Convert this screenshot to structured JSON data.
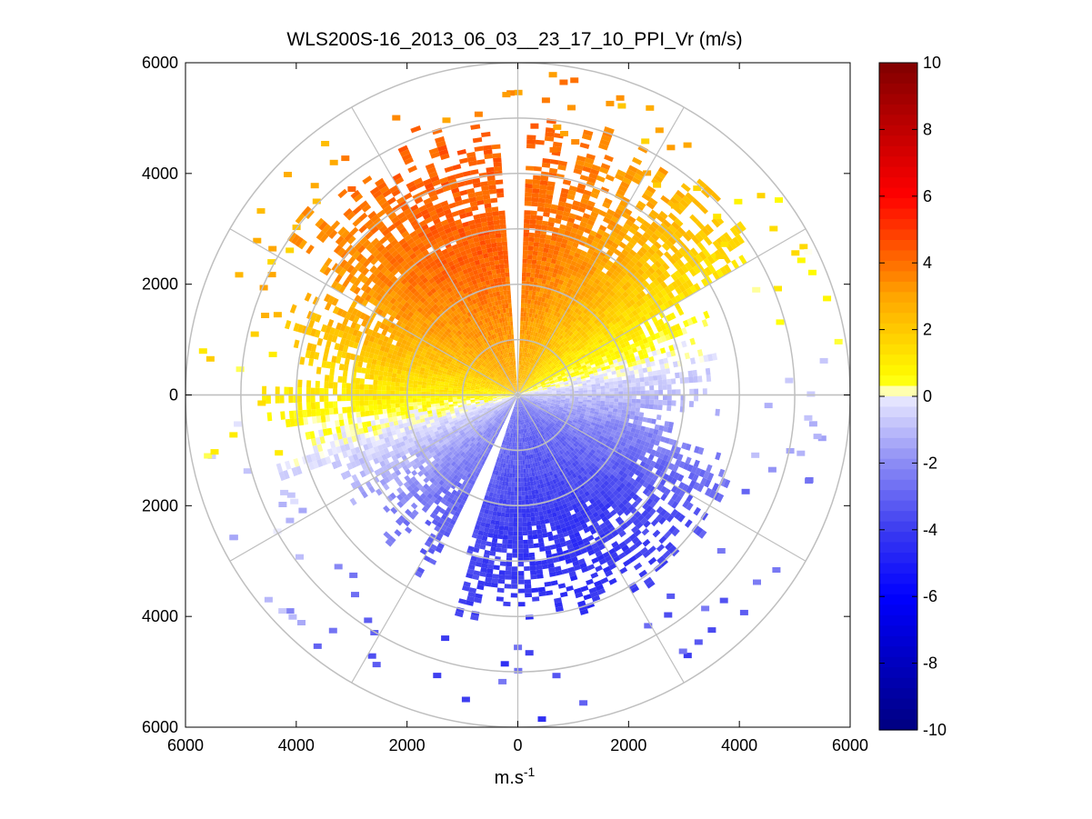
{
  "chart_data": {
    "type": "heatmap",
    "subtype": "polar-ppi",
    "title": "WLS200S-16_2013_06_03__23_17_10_PPI_Vr (m/s)",
    "xlabel_main": "m.s",
    "xlabel_exponent": "-1",
    "ylabel": "",
    "xlim": [
      -6000,
      6000
    ],
    "ylim": [
      -6000,
      6000
    ],
    "x_ticks": [
      -6000,
      -4000,
      -2000,
      0,
      2000,
      4000,
      6000
    ],
    "x_tick_labels": [
      "6000",
      "4000",
      "2000",
      "0",
      "2000",
      "4000",
      "6000"
    ],
    "y_ticks": [
      6000,
      4000,
      2000,
      0,
      -2000,
      -4000,
      -6000
    ],
    "y_tick_labels": [
      "6000",
      "4000",
      "2000",
      "0",
      "2000",
      "4000",
      "6000"
    ],
    "range_rings": [
      1000,
      2000,
      3000,
      4000,
      5000,
      6000
    ],
    "azimuth_spokes_deg": [
      0,
      30,
      60,
      90,
      120,
      150,
      180,
      210,
      240,
      270,
      300,
      330
    ],
    "colorbar": {
      "min": -10,
      "max": 10,
      "ticks": [
        10,
        8,
        6,
        4,
        2,
        0,
        -2,
        -4,
        -6,
        -8,
        -10
      ],
      "tick_labels": [
        "10",
        "8",
        "6",
        "4",
        "2",
        "0",
        "-2",
        "-4",
        "-6",
        "-8",
        "-10"
      ]
    },
    "description_data": {
      "radial_velocity_field": "Positive (approx. +1 to +5 m/s) over azimuths ~280°–80° (north/west sector), negative (approx. -1 to -4 m/s) over azimuths ~100°–240° (south/east sector), near 0 along the ~90° and ~250° transition line",
      "max_range_m": 5800
    },
    "colors": {
      "ring": "#bfbfbf",
      "axis": "#000000"
    }
  }
}
